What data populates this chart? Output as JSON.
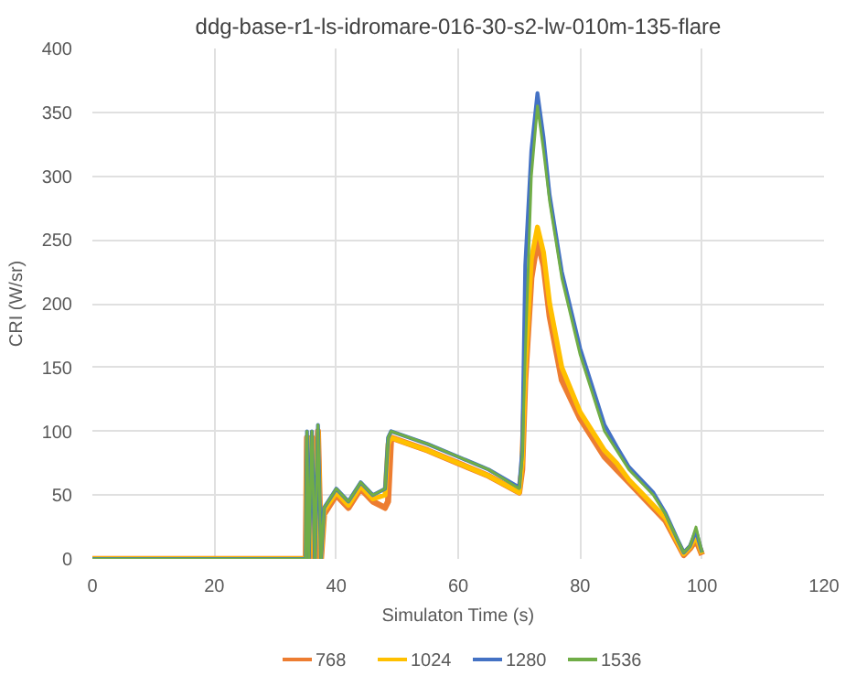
{
  "chart_data": {
    "type": "line",
    "title": "ddg-base-r1-ls-idromare-016-30-s2-lw-010m-135-flare",
    "xlabel": "Simulaton Time (s)",
    "ylabel": "CRI (W/sr)",
    "x": [
      0,
      35,
      35.2,
      35.5,
      36,
      36.5,
      37,
      37.5,
      38,
      40,
      42,
      44,
      46,
      48,
      48.5,
      49,
      52,
      55,
      60,
      65,
      70,
      70.5,
      71,
      72,
      73,
      74,
      75,
      77,
      80,
      82,
      84,
      86,
      88,
      90,
      92,
      94,
      96,
      97,
      98,
      99,
      100
    ],
    "series": [
      {
        "name": "768",
        "color": "#ed7d31",
        "values": [
          0,
          0,
          95,
          0,
          95,
          0,
          100,
          0,
          35,
          50,
          40,
          55,
          45,
          40,
          45,
          95,
          90,
          85,
          75,
          65,
          52,
          70,
          140,
          220,
          250,
          230,
          190,
          140,
          110,
          95,
          80,
          70,
          60,
          50,
          40,
          30,
          12,
          3,
          8,
          15,
          3
        ]
      },
      {
        "name": "1024",
        "color": "#ffc000",
        "values": [
          0,
          0,
          95,
          0,
          95,
          0,
          100,
          0,
          38,
          52,
          42,
          57,
          47,
          50,
          90,
          95,
          90,
          85,
          75,
          65,
          52,
          75,
          150,
          235,
          260,
          240,
          200,
          150,
          115,
          100,
          85,
          75,
          62,
          52,
          42,
          32,
          13,
          4,
          9,
          18,
          4
        ]
      },
      {
        "name": "1280",
        "color": "#4472c4",
        "values": [
          0,
          0,
          100,
          0,
          100,
          0,
          105,
          0,
          40,
          55,
          45,
          60,
          50,
          55,
          95,
          100,
          95,
          90,
          80,
          70,
          56,
          85,
          230,
          320,
          365,
          330,
          285,
          225,
          165,
          135,
          105,
          88,
          72,
          62,
          52,
          36,
          15,
          5,
          10,
          22,
          5
        ]
      },
      {
        "name": "1536",
        "color": "#70ad47",
        "values": [
          0,
          0,
          100,
          0,
          100,
          0,
          105,
          0,
          40,
          55,
          45,
          60,
          50,
          55,
          95,
          100,
          95,
          90,
          80,
          70,
          55,
          80,
          160,
          300,
          355,
          320,
          280,
          220,
          160,
          130,
          100,
          85,
          70,
          60,
          50,
          35,
          15,
          5,
          10,
          25,
          5
        ]
      }
    ],
    "xlim": [
      0,
      120
    ],
    "xticks": [
      0,
      20,
      40,
      60,
      80,
      100,
      120
    ],
    "ylim": [
      0,
      400
    ],
    "yticks": [
      0,
      50,
      100,
      150,
      200,
      250,
      300,
      350,
      400
    ],
    "grid": true,
    "legend": "bottom",
    "marker": "none",
    "line_style": "solid"
  }
}
